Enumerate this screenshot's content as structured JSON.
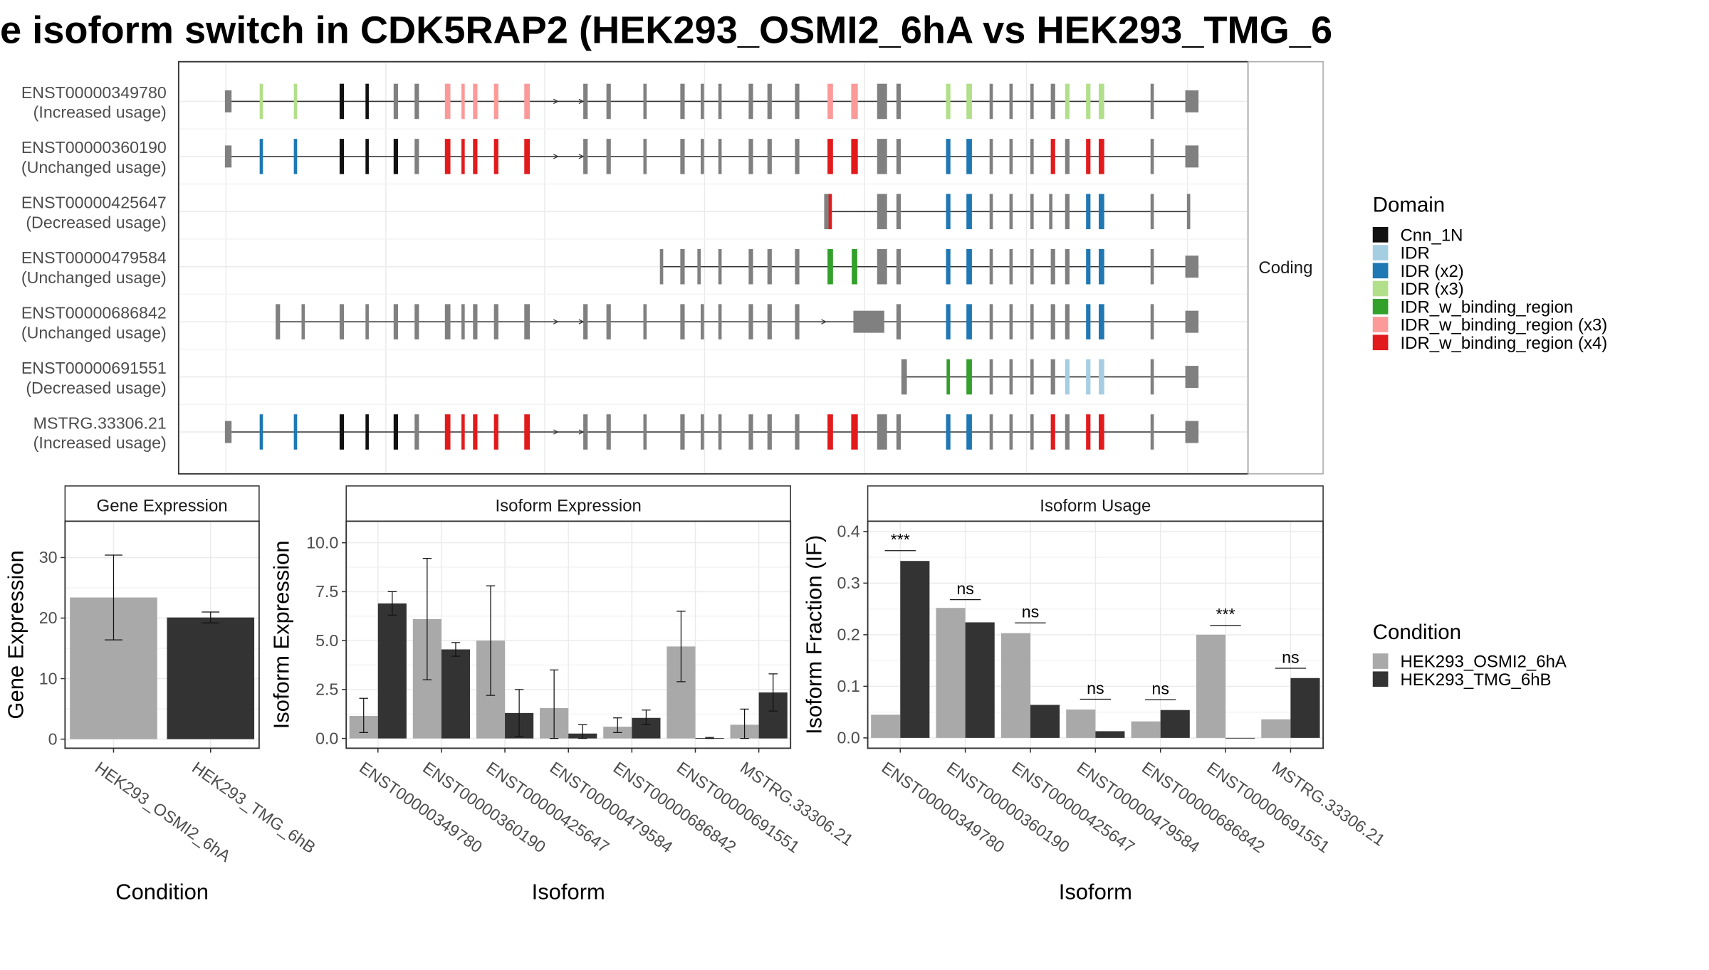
{
  "title": "e isoform switch in CDK5RAP2 (HEK293_OSMI2_6hA vs HEK293_TMG_6",
  "colors": {
    "exon": "#808080",
    "cond1": "#A9A9A9",
    "cond2": "#333333",
    "Cnn_1N": "#111111",
    "IDR": "#A6CEE3",
    "IDR (x2)": "#1F78B4",
    "IDR (x3)": "#B2DF8A",
    "IDR_w_binding_region": "#33A02C",
    "IDR_w_binding_region (x3)": "#FB9A99",
    "IDR_w_binding_region (x4)": "#E31A1C"
  },
  "structure": {
    "facet_label": "Coding",
    "transcripts": [
      {
        "id": "ENST00000349780",
        "usage": "(Increased usage)"
      },
      {
        "id": "ENST00000360190",
        "usage": "(Unchanged usage)"
      },
      {
        "id": "ENST00000425647",
        "usage": "(Decreased usage)"
      },
      {
        "id": "ENST00000479584",
        "usage": "(Unchanged usage)"
      },
      {
        "id": "ENST00000686842",
        "usage": "(Unchanged usage)"
      },
      {
        "id": "ENST00000691551",
        "usage": "(Decreased usage)"
      },
      {
        "id": "MSTRG.33306.21",
        "usage": "(Increased usage)"
      }
    ]
  },
  "legend_domain": {
    "title": "Domain",
    "items": [
      "Cnn_1N",
      "IDR",
      "IDR (x2)",
      "IDR (x3)",
      "IDR_w_binding_region",
      "IDR_w_binding_region (x3)",
      "IDR_w_binding_region (x4)"
    ]
  },
  "legend_condition": {
    "title": "Condition",
    "items": [
      "HEK293_OSMI2_6hA",
      "HEK293_TMG_6hB"
    ]
  },
  "chart_data": [
    {
      "type": "bar",
      "title": "Gene Expression",
      "xlabel": "Condition",
      "ylabel": "Gene Expression",
      "categories": [
        "HEK293_OSMI2_6hA",
        "HEK293_TMG_6hB"
      ],
      "values": [
        23.4,
        20.1
      ],
      "error_low": [
        16.4,
        19.2
      ],
      "error_high": [
        30.4,
        21.0
      ],
      "yticks": [
        0,
        10,
        20,
        30
      ],
      "ylim": [
        -1.5,
        36
      ]
    },
    {
      "type": "bar",
      "title": "Isoform Expression",
      "xlabel": "Isoform",
      "ylabel": "Isoform Expression",
      "categories": [
        "ENST00000349780",
        "ENST00000360190",
        "ENST00000425647",
        "ENST00000479584",
        "ENST00000686842",
        "ENST00000691551",
        "MSTRG.33306.21"
      ],
      "yticks": [
        0.0,
        2.5,
        5.0,
        7.5,
        10.0
      ],
      "ytick_labels": [
        "0.0",
        "2.5",
        "5.0",
        "7.5",
        "10.0"
      ],
      "ylim": [
        -0.5,
        11.1
      ],
      "series": [
        {
          "name": "HEK293_OSMI2_6hA",
          "values": [
            1.15,
            6.1,
            5.0,
            1.55,
            0.6,
            4.7,
            0.7
          ],
          "error_low": [
            0.3,
            3.0,
            2.2,
            0.0,
            0.3,
            2.9,
            0.0
          ],
          "error_high": [
            2.05,
            9.2,
            7.8,
            3.5,
            1.05,
            6.5,
            1.5
          ]
        },
        {
          "name": "HEK293_TMG_6hB",
          "values": [
            6.9,
            4.55,
            1.3,
            0.25,
            1.05,
            0.02,
            2.35
          ],
          "error_low": [
            6.3,
            4.2,
            0.1,
            0.0,
            0.7,
            0.0,
            1.4
          ],
          "error_high": [
            7.5,
            4.9,
            2.5,
            0.7,
            1.45,
            0.05,
            3.3
          ]
        }
      ]
    },
    {
      "type": "bar",
      "title": "Isoform Usage",
      "xlabel": "Isoform",
      "ylabel": "Isoform Fraction (IF)",
      "categories": [
        "ENST00000349780",
        "ENST00000360190",
        "ENST00000425647",
        "ENST00000479584",
        "ENST00000686842",
        "ENST00000691551",
        "MSTRG.33306.21"
      ],
      "yticks": [
        0.0,
        0.1,
        0.2,
        0.3,
        0.4
      ],
      "ytick_labels": [
        "0.0",
        "0.1",
        "0.2",
        "0.3",
        "0.4"
      ],
      "ylim": [
        -0.02,
        0.42
      ],
      "series": [
        {
          "name": "HEK293_OSMI2_6hA",
          "values": [
            0.045,
            0.252,
            0.203,
            0.055,
            0.032,
            0.2,
            0.036
          ]
        },
        {
          "name": "HEK293_TMG_6hB",
          "values": [
            0.343,
            0.224,
            0.064,
            0.013,
            0.054,
            0.0,
            0.116
          ]
        }
      ],
      "significance": [
        "***",
        "ns",
        "ns",
        "ns",
        "ns",
        "***",
        "ns"
      ],
      "sig_y": [
        0.363,
        0.268,
        0.223,
        0.075,
        0.074,
        0.218,
        0.135
      ]
    }
  ]
}
